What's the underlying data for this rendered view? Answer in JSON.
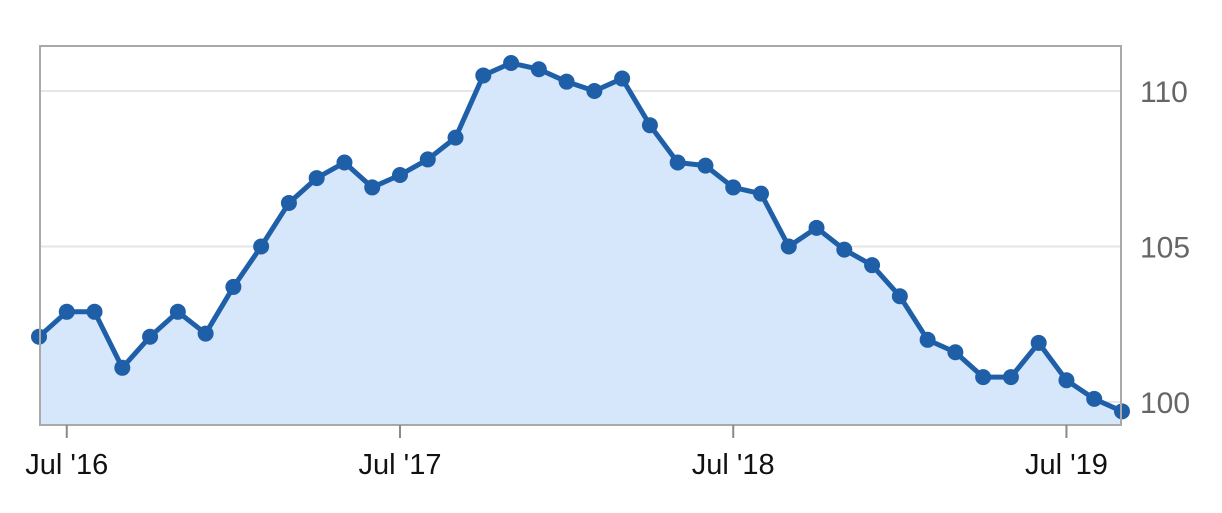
{
  "chart_data": {
    "type": "area",
    "title": "",
    "xlabel": "",
    "ylabel": "",
    "x_tick_labels": [
      "Jul '16",
      "Jul '17",
      "Jul '18",
      "Jul '19"
    ],
    "x_tick_dates": [
      "2016-07",
      "2017-07",
      "2018-07",
      "2019-07"
    ],
    "y_ticks": [
      100,
      105,
      110
    ],
    "y_tick_labels": [
      "100",
      "105",
      "110"
    ],
    "xlim": [
      "2016-06",
      "2019-09"
    ],
    "ylim": [
      99.3,
      111.5
    ],
    "y_axis_position": "right",
    "grid": true,
    "colors": {
      "line": "#1f5fa8",
      "fill": "#d6e6fb",
      "grid": "#e6e6e6",
      "frame": "#a9a9a9"
    },
    "series": [
      {
        "x": [
          "2016-06",
          "2016-07",
          "2016-08",
          "2016-09",
          "2016-10",
          "2016-11",
          "2016-12",
          "2017-01",
          "2017-02",
          "2017-03",
          "2017-04",
          "2017-05",
          "2017-06",
          "2017-07",
          "2017-08",
          "2017-09",
          "2017-10",
          "2017-11",
          "2017-12",
          "2018-01",
          "2018-02",
          "2018-03",
          "2018-04",
          "2018-05",
          "2018-06",
          "2018-07",
          "2018-08",
          "2018-09",
          "2018-10",
          "2018-11",
          "2018-12",
          "2019-01",
          "2019-02",
          "2019-03",
          "2019-04",
          "2019-05",
          "2019-06",
          "2019-07",
          "2019-08",
          "2019-09"
        ],
        "values": [
          102.1,
          102.9,
          102.9,
          101.1,
          102.1,
          102.9,
          102.2,
          103.7,
          105.0,
          106.4,
          107.2,
          107.7,
          106.9,
          107.3,
          107.8,
          108.5,
          110.5,
          110.9,
          110.7,
          110.3,
          110.0,
          110.4,
          108.9,
          107.7,
          107.6,
          106.9,
          106.7,
          105.0,
          105.6,
          104.9,
          104.4,
          103.4,
          102.0,
          101.6,
          100.8,
          100.8,
          101.9,
          100.7,
          100.1,
          99.7
        ]
      }
    ]
  }
}
